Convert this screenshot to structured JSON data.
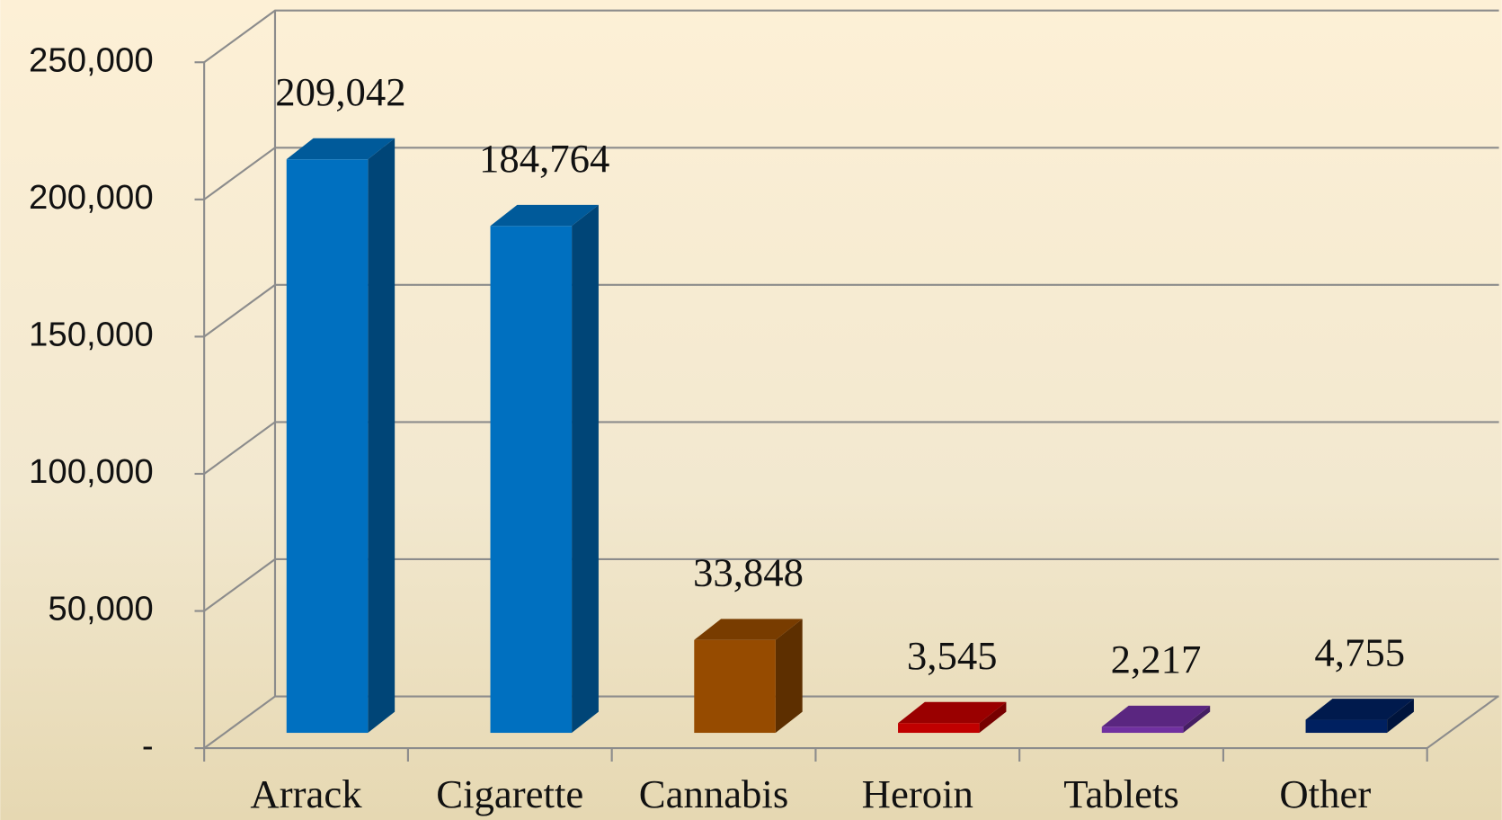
{
  "chart_data": {
    "type": "bar3d",
    "categories": [
      "Arrack",
      "Cigarette",
      "Cannabis",
      "Heroin",
      "Tablets",
      "Other"
    ],
    "values": [
      209042,
      184764,
      33848,
      3545,
      2217,
      4755
    ],
    "value_labels": [
      "209,042",
      "184,764",
      "33,848",
      "3,545",
      "2,217",
      "4,755"
    ],
    "colors": [
      "#0070c0",
      "#0070c0",
      "#964b00",
      "#c00000",
      "#7030a0",
      "#002060"
    ],
    "ylim": [
      0,
      250000
    ],
    "yticks": [
      {
        "value": 0,
        "label": "-"
      },
      {
        "value": 50000,
        "label": "50,000"
      },
      {
        "value": 100000,
        "label": "100,000"
      },
      {
        "value": 150000,
        "label": "150,000"
      },
      {
        "value": 200000,
        "label": "200,000"
      },
      {
        "value": 250000,
        "label": "250,000"
      }
    ],
    "grid": true
  }
}
